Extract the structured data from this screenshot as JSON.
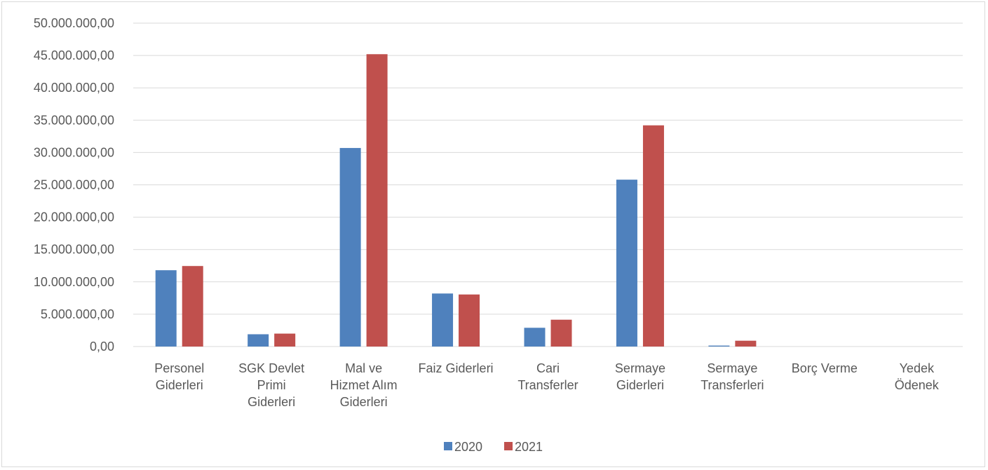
{
  "chart_data": {
    "type": "bar",
    "categories": [
      [
        "Personel",
        "Giderleri"
      ],
      [
        "SGK Devlet",
        "Primi",
        "Giderleri"
      ],
      [
        "Mal ve",
        "Hizmet Alım",
        "Giderleri"
      ],
      [
        "Faiz Giderleri"
      ],
      [
        "Cari",
        "Transferler"
      ],
      [
        "Sermaye",
        "Giderleri"
      ],
      [
        "Sermaye",
        "Transferleri"
      ],
      [
        "Borç Verme"
      ],
      [
        "Yedek",
        "Ödenek"
      ]
    ],
    "series": [
      {
        "name": "2020",
        "color": "#4f81bd",
        "values": [
          11800000,
          1900000,
          30700000,
          8200000,
          2900000,
          25800000,
          150000,
          0,
          0
        ]
      },
      {
        "name": "2021",
        "color": "#c0504d",
        "values": [
          12450000,
          2000000,
          45200000,
          8050000,
          4150000,
          34200000,
          900000,
          0,
          0
        ]
      }
    ],
    "ylim": [
      0,
      50000000
    ],
    "yticks": [
      0,
      5000000,
      10000000,
      15000000,
      20000000,
      25000000,
      30000000,
      35000000,
      40000000,
      45000000,
      50000000
    ],
    "ytick_labels": [
      "0,00",
      "5.000.000,00",
      "10.000.000,00",
      "15.000.000,00",
      "20.000.000,00",
      "25.000.000,00",
      "30.000.000,00",
      "35.000.000,00",
      "40.000.000,00",
      "45.000.000,00",
      "50.000.000,00"
    ],
    "grid": true,
    "legend": "bottom",
    "gridline_color": "#d9d9d9"
  }
}
